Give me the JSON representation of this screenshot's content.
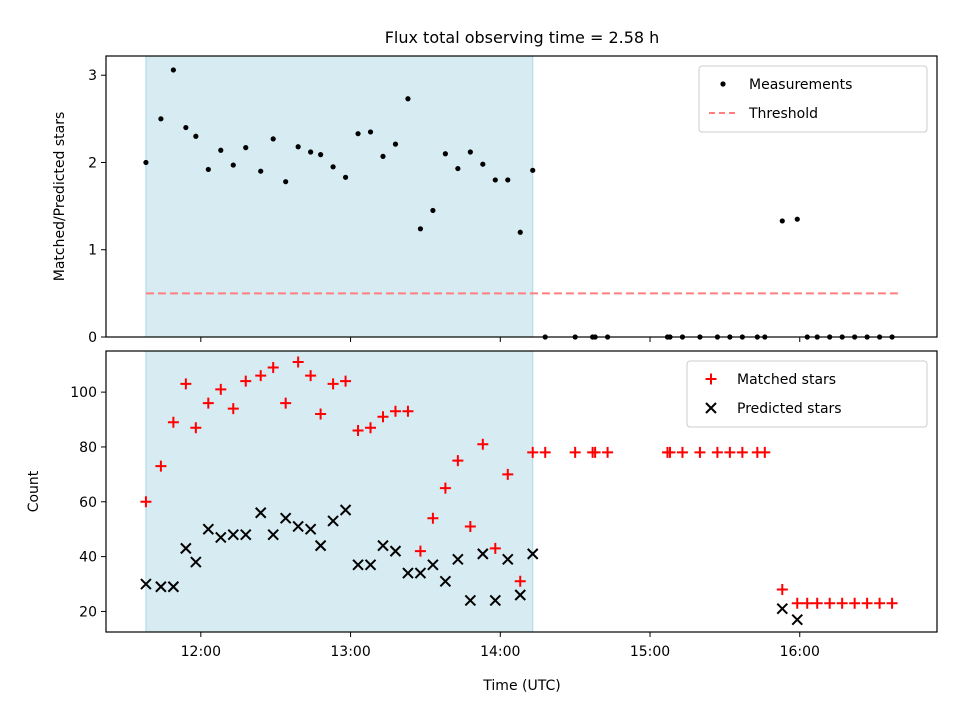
{
  "chart_data": {
    "type": "scatter",
    "title": "Flux total observing time = 2.58 h",
    "xlabel": "Time (UTC)",
    "x_range": [
      "11:22",
      "16:55"
    ],
    "x_ticks": [
      "12:00",
      "13:00",
      "14:00",
      "15:00",
      "16:00"
    ],
    "shaded_interval": [
      "11:38",
      "14:13"
    ],
    "colors": {
      "shade": "#add8e6",
      "measurements": "#000000",
      "threshold": "#ff7f7f",
      "matched": "#ff0000",
      "predicted": "#000000"
    },
    "panels": [
      {
        "ylabel": "Matched/Predicted stars",
        "ylim": [
          0,
          3.22
        ],
        "y_ticks": [
          0,
          1,
          2,
          3
        ],
        "legend_position": "top-right",
        "series": [
          {
            "name": "Measurements",
            "marker": "dot",
            "x": [
              "11:38",
              "11:44",
              "11:49",
              "11:54",
              "11:58",
              "12:03",
              "12:08",
              "12:13",
              "12:18",
              "12:24",
              "12:29",
              "12:34",
              "12:39",
              "12:44",
              "12:48",
              "12:53",
              "12:58",
              "13:03",
              "13:08",
              "13:13",
              "13:18",
              "13:23",
              "13:28",
              "13:33",
              "13:38",
              "13:43",
              "13:48",
              "13:53",
              "13:58",
              "14:03",
              "14:08",
              "14:13",
              "14:18",
              "14:30",
              "14:37",
              "14:38",
              "14:43",
              "15:07",
              "15:08",
              "15:13",
              "15:20",
              "15:27",
              "15:32",
              "15:37",
              "15:43",
              "15:46",
              "15:53",
              "15:59",
              "16:03",
              "16:07",
              "16:12",
              "16:17",
              "16:22",
              "16:27",
              "16:32",
              "16:37"
            ],
            "y": [
              2.0,
              2.5,
              3.06,
              2.4,
              2.3,
              1.92,
              2.14,
              1.97,
              2.17,
              1.9,
              2.27,
              1.78,
              2.18,
              2.12,
              2.09,
              1.95,
              1.83,
              2.33,
              2.35,
              2.07,
              2.21,
              2.73,
              1.24,
              1.45,
              2.1,
              1.93,
              2.12,
              1.98,
              1.8,
              1.8,
              1.2,
              1.91,
              0,
              0,
              0,
              0,
              0,
              0,
              0,
              0,
              0,
              0,
              0,
              0,
              0,
              0,
              1.33,
              1.35,
              0,
              0,
              0,
              0,
              0,
              0,
              0,
              0
            ]
          },
          {
            "name": "Threshold",
            "style": "dashed",
            "x": [
              "11:38",
              "16:40"
            ],
            "y": [
              0.5,
              0.5
            ]
          }
        ]
      },
      {
        "ylabel": "Count",
        "ylim": [
          12.5,
          115
        ],
        "y_ticks": [
          20,
          40,
          60,
          80,
          100
        ],
        "legend_position": "top-right",
        "series": [
          {
            "name": "Matched stars",
            "marker": "plus",
            "x": [
              "11:38",
              "11:44",
              "11:49",
              "11:54",
              "11:58",
              "12:03",
              "12:08",
              "12:13",
              "12:18",
              "12:24",
              "12:29",
              "12:34",
              "12:39",
              "12:44",
              "12:48",
              "12:53",
              "12:58",
              "13:03",
              "13:08",
              "13:13",
              "13:18",
              "13:23",
              "13:28",
              "13:33",
              "13:38",
              "13:43",
              "13:48",
              "13:53",
              "13:58",
              "14:03",
              "14:08",
              "14:13",
              "14:18",
              "14:30",
              "14:37",
              "14:38",
              "14:43",
              "15:07",
              "15:08",
              "15:13",
              "15:20",
              "15:27",
              "15:32",
              "15:37",
              "15:43",
              "15:46",
              "15:53",
              "15:59",
              "16:03",
              "16:07",
              "16:12",
              "16:17",
              "16:22",
              "16:27",
              "16:32",
              "16:37"
            ],
            "y": [
              60,
              73,
              89,
              103,
              87,
              96,
              101,
              94,
              104,
              106,
              109,
              96,
              111,
              106,
              92,
              103,
              104,
              86,
              87,
              91,
              93,
              93,
              42,
              54,
              65,
              75,
              51,
              81,
              43,
              70,
              31,
              78,
              78,
              78,
              78,
              78,
              78,
              78,
              78,
              78,
              78,
              78,
              78,
              78,
              78,
              78,
              28,
              23,
              23,
              23,
              23,
              23,
              23,
              23,
              23,
              23
            ]
          },
          {
            "name": "Predicted stars",
            "marker": "x",
            "x": [
              "11:38",
              "11:44",
              "11:49",
              "11:54",
              "11:58",
              "12:03",
              "12:08",
              "12:13",
              "12:18",
              "12:24",
              "12:29",
              "12:34",
              "12:39",
              "12:44",
              "12:48",
              "12:53",
              "12:58",
              "13:03",
              "13:08",
              "13:13",
              "13:18",
              "13:23",
              "13:28",
              "13:33",
              "13:38",
              "13:43",
              "13:48",
              "13:53",
              "13:58",
              "14:03",
              "14:08",
              "14:13",
              "15:53",
              "15:59"
            ],
            "y": [
              30,
              29,
              29,
              43,
              38,
              50,
              47,
              48,
              48,
              56,
              48,
              54,
              51,
              50,
              44,
              53,
              57,
              37,
              37,
              44,
              42,
              34,
              34,
              37,
              31,
              39,
              24,
              41,
              24,
              39,
              26,
              41,
              21,
              17
            ]
          }
        ]
      }
    ]
  }
}
